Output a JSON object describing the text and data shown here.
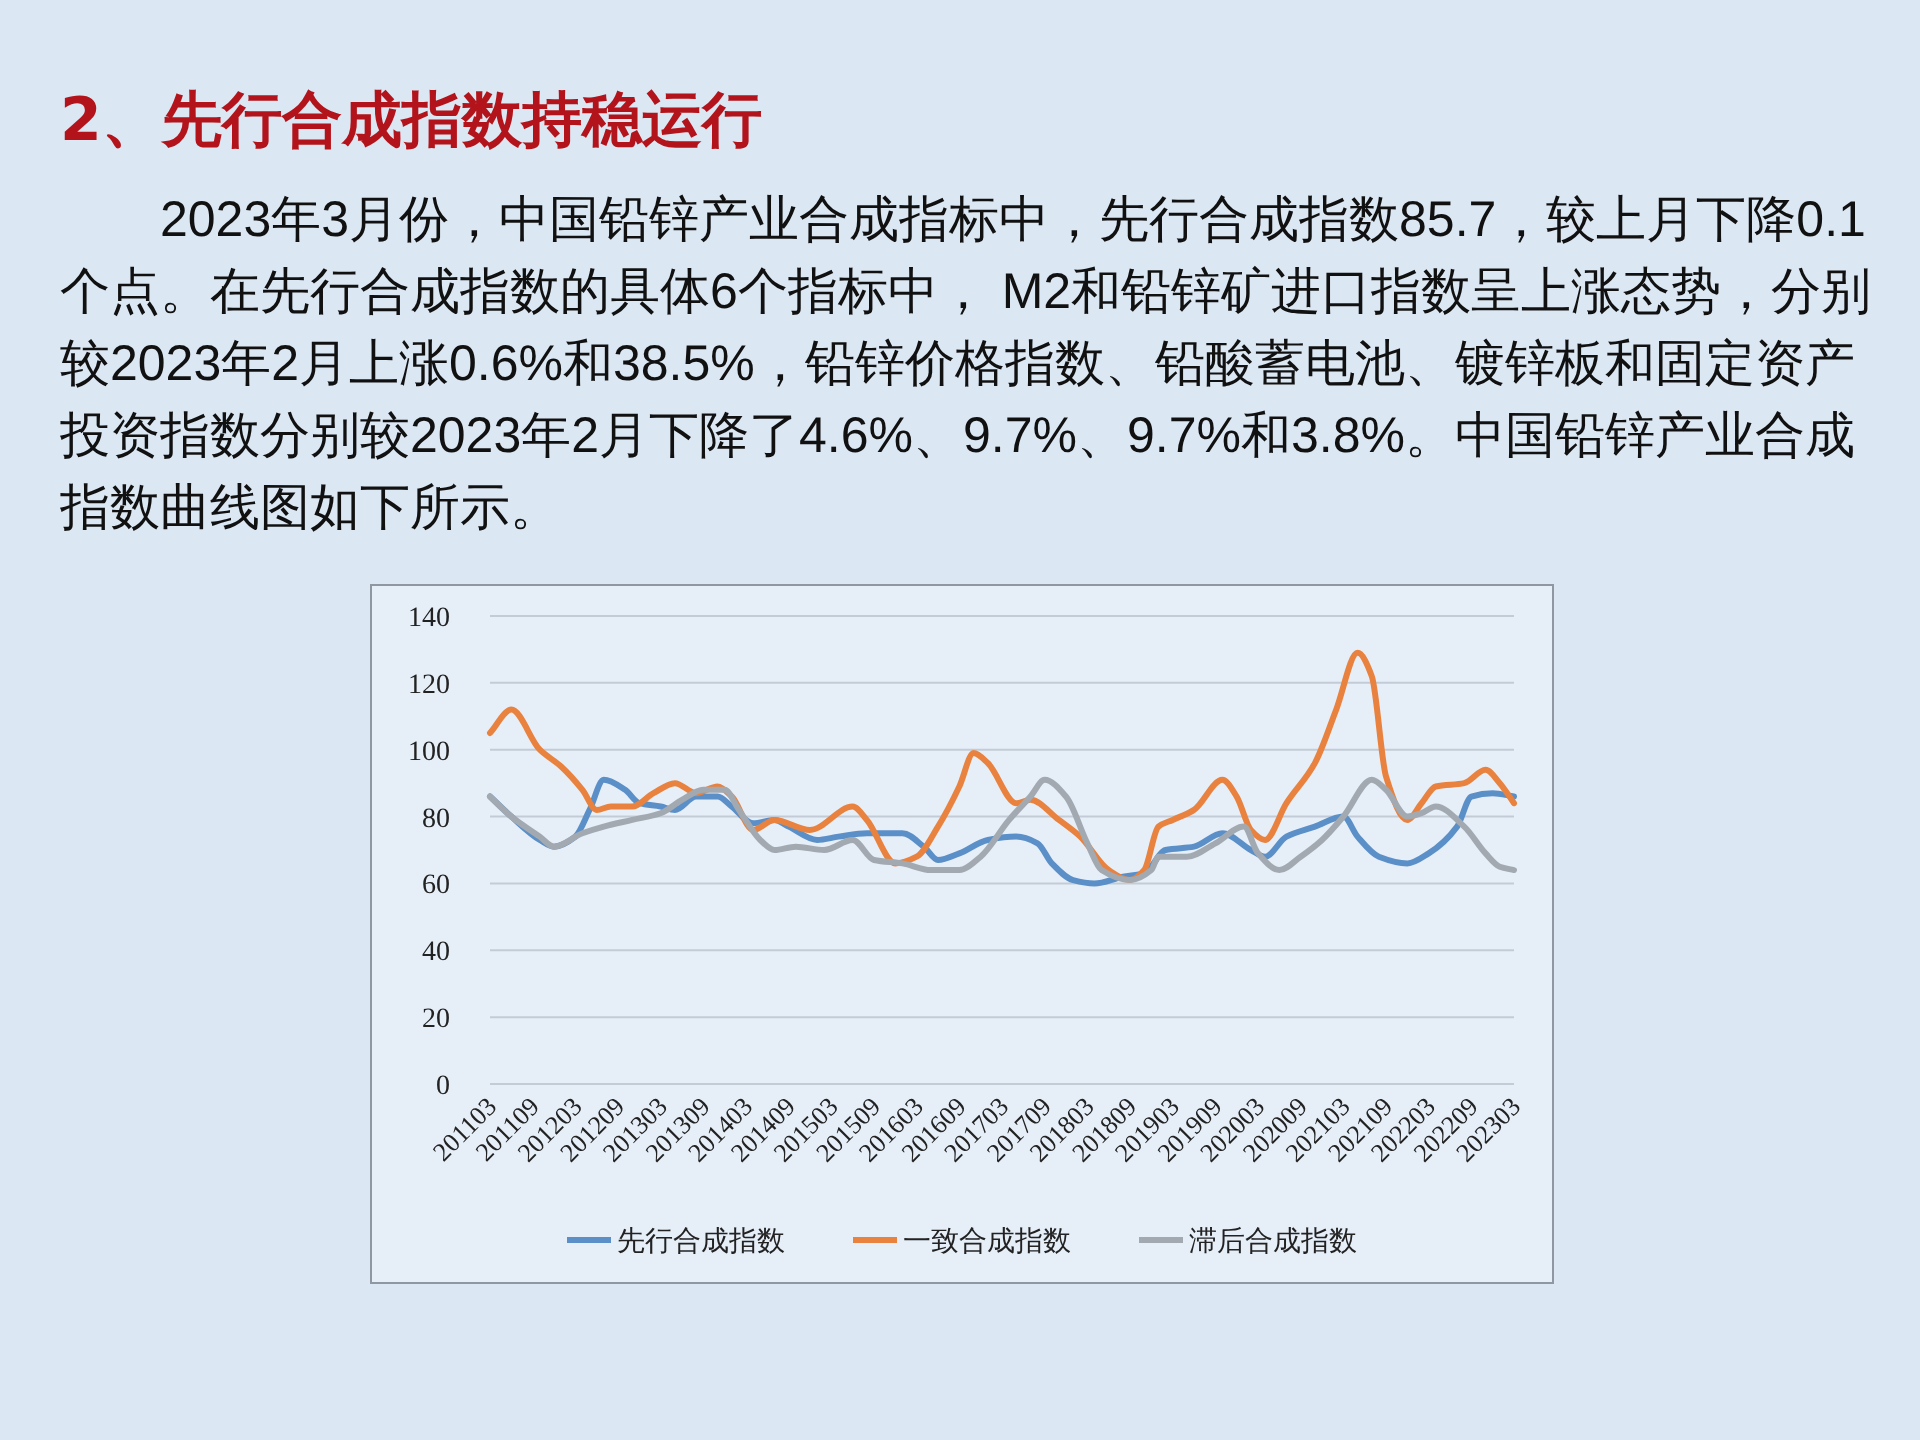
{
  "chart_data": {
    "type": "line",
    "title": "2、先行合成指数持稳运行",
    "subtitle": "2023年3月份，中国铅锌产业合成指标中，先行合成指数85.7，较上月下降0.1个点。在先行合成指数的具体6个指标中， M2和铅锌矿进口指数呈上涨态势，分别较2023年2月上涨0.6%和38.5%，铅锌价格指数、铅酸蓄电池、镀锌板和固定资产投资指数分别较2023年2月下降了4.6%、9.7%、9.7%和3.8%。中国铅锌产业合成指数曲线图如下所示。",
    "xlim": [
      "2011-03",
      "2023-03"
    ],
    "xticks": [
      {
        "value": "2011-03",
        "label": "201103"
      },
      {
        "value": "2011-09",
        "label": "201109"
      },
      {
        "value": "2012-03",
        "label": "201203"
      },
      {
        "value": "2012-09",
        "label": "201209"
      },
      {
        "value": "2013-03",
        "label": "201303"
      },
      {
        "value": "2013-09",
        "label": "201309"
      },
      {
        "value": "2014-03",
        "label": "201403"
      },
      {
        "value": "2014-09",
        "label": "201409"
      },
      {
        "value": "2015-03",
        "label": "201503"
      },
      {
        "value": "2015-09",
        "label": "201509"
      },
      {
        "value": "2016-03",
        "label": "201603"
      },
      {
        "value": "2016-09",
        "label": "201609"
      },
      {
        "value": "2017-03",
        "label": "201703"
      },
      {
        "value": "2017-09",
        "label": "201709"
      },
      {
        "value": "2018-03",
        "label": "201803"
      },
      {
        "value": "2018-09",
        "label": "201809"
      },
      {
        "value": "2019-03",
        "label": "201903"
      },
      {
        "value": "2019-09",
        "label": "201909"
      },
      {
        "value": "2020-03",
        "label": "202003"
      },
      {
        "value": "2020-09",
        "label": "202009"
      },
      {
        "value": "2021-03",
        "label": "202103"
      },
      {
        "value": "2021-09",
        "label": "202109"
      },
      {
        "value": "2022-03",
        "label": "202203"
      },
      {
        "value": "2022-09",
        "label": "202209"
      },
      {
        "value": "2023-03",
        "label": "202303"
      }
    ],
    "ylim": [
      0,
      140
    ],
    "yticks": [
      0,
      20,
      40,
      60,
      80,
      100,
      120,
      140
    ],
    "grid": "y",
    "legend": "bottom",
    "series": [
      {
        "name": "先行合成指数",
        "color": "#5b8fc7",
        "x": [
          "2011-03",
          "2011-06",
          "2011-10",
          "2011-12",
          "2012-03",
          "2012-05",
          "2012-07",
          "2012-10",
          "2012-12",
          "2013-03",
          "2013-05",
          "2013-08",
          "2013-11",
          "2014-01",
          "2014-04",
          "2014-07",
          "2014-09",
          "2015-01",
          "2015-04",
          "2015-08",
          "2016-01",
          "2016-04",
          "2016-06",
          "2016-09",
          "2017-01",
          "2017-05",
          "2017-08",
          "2017-10",
          "2018-01",
          "2018-04",
          "2018-08",
          "2018-11",
          "2019-02",
          "2019-06",
          "2019-10",
          "2020-02",
          "2020-04",
          "2020-07",
          "2020-11",
          "2021-03",
          "2021-05",
          "2021-08",
          "2021-12",
          "2022-03",
          "2022-07",
          "2022-09",
          "2022-12",
          "2023-03"
        ],
        "values": [
          86,
          80,
          73,
          71,
          74,
          82,
          91,
          88,
          84,
          83,
          82,
          86,
          86,
          83,
          78,
          79,
          77,
          73,
          74,
          75,
          75,
          71,
          67,
          69,
          73,
          74,
          72,
          66,
          61,
          60,
          62,
          63,
          70,
          71,
          75,
          70,
          68,
          74,
          77,
          80,
          74,
          68,
          66,
          69,
          77,
          86,
          87,
          86
        ]
      },
      {
        "name": "一致合成指数",
        "color": "#e8823e",
        "x": [
          "2011-03",
          "2011-06",
          "2011-10",
          "2012-01",
          "2012-04",
          "2012-06",
          "2012-08",
          "2012-11",
          "2013-02",
          "2013-05",
          "2013-08",
          "2013-11",
          "2014-01",
          "2014-04",
          "2014-07",
          "2014-12",
          "2015-06",
          "2015-08",
          "2015-12",
          "2016-03",
          "2016-06",
          "2016-09",
          "2016-11",
          "2017-01",
          "2017-05",
          "2017-07",
          "2017-11",
          "2018-02",
          "2018-06",
          "2018-09",
          "2018-11",
          "2019-01",
          "2019-03",
          "2019-06",
          "2019-10",
          "2019-12",
          "2020-02",
          "2020-04",
          "2020-07",
          "2020-11",
          "2021-02",
          "2021-05",
          "2021-07",
          "2021-09",
          "2021-12",
          "2022-02",
          "2022-04",
          "2022-08",
          "2022-11",
          "2023-01",
          "2023-03"
        ],
        "values": [
          105,
          112,
          100,
          95,
          88,
          82,
          83,
          83,
          87,
          90,
          87,
          89,
          86,
          76,
          79,
          76,
          83,
          79,
          66,
          68,
          77,
          89,
          99,
          96,
          84,
          85,
          79,
          74,
          64,
          61,
          64,
          77,
          79,
          82,
          91,
          86,
          76,
          73,
          84,
          96,
          112,
          129,
          122,
          92,
          79,
          84,
          89,
          90,
          94,
          90,
          84
        ]
      },
      {
        "name": "滞后合成指数",
        "color": "#a2a9b1",
        "x": [
          "2011-03",
          "2011-06",
          "2011-10",
          "2011-12",
          "2012-04",
          "2012-07",
          "2012-11",
          "2013-03",
          "2013-06",
          "2013-09",
          "2013-12",
          "2014-02",
          "2014-05",
          "2014-07",
          "2014-10",
          "2015-02",
          "2015-06",
          "2015-09",
          "2016-01",
          "2016-05",
          "2016-09",
          "2016-12",
          "2017-04",
          "2017-07",
          "2017-09",
          "2017-12",
          "2018-03",
          "2018-05",
          "2018-09",
          "2018-12",
          "2019-01",
          "2019-05",
          "2019-09",
          "2020-01",
          "2020-03",
          "2020-06",
          "2020-09",
          "2020-12",
          "2021-03",
          "2021-07",
          "2021-09",
          "2021-12",
          "2022-02",
          "2022-04",
          "2022-08",
          "2022-11",
          "2023-01",
          "2023-03"
        ],
        "values": [
          86,
          80,
          74,
          71,
          75,
          77,
          79,
          81,
          85,
          88,
          88,
          82,
          73,
          70,
          71,
          70,
          73,
          67,
          66,
          64,
          64,
          68,
          79,
          86,
          91,
          86,
          72,
          64,
          61,
          64,
          68,
          68,
          72,
          77,
          69,
          64,
          68,
          73,
          80,
          91,
          88,
          80,
          81,
          83,
          77,
          69,
          65,
          64
        ]
      }
    ]
  }
}
